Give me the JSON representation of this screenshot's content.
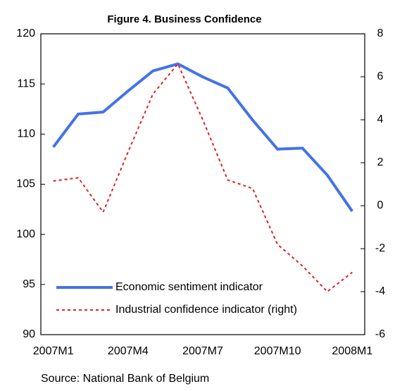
{
  "chart_data": {
    "type": "line",
    "title": "Figure 4. Business Confidence",
    "source": "Source: National Bank of Belgium",
    "categories": [
      "2007M1",
      null,
      null,
      "2007M4",
      null,
      null,
      "2007M7",
      null,
      null,
      "2007M10",
      null,
      null,
      "2008M1"
    ],
    "series": [
      {
        "name": "Economic sentiment indicator",
        "color": "#4472e8",
        "axis": "y",
        "values": [
          108.7,
          112.0,
          112.2,
          114.3,
          116.3,
          117.0,
          115.7,
          114.6,
          111.4,
          108.5,
          108.6,
          105.9,
          102.3
        ]
      },
      {
        "name": "Industrial confidence indicator (right)",
        "color": "#e02020",
        "axis": "y2",
        "values": [
          1.15,
          1.3,
          -0.3,
          2.5,
          5.2,
          6.6,
          4.0,
          1.2,
          0.8,
          -1.8,
          -2.8,
          -4.0,
          -3.1
        ]
      }
    ],
    "ylim": [
      90,
      120
    ],
    "yticks": [
      90,
      95,
      100,
      105,
      110,
      115,
      120
    ],
    "y2lim": [
      -6,
      8
    ],
    "y2ticks": [
      -6,
      -4,
      -2,
      0,
      2,
      4,
      6,
      8
    ],
    "legend": "lower left"
  }
}
